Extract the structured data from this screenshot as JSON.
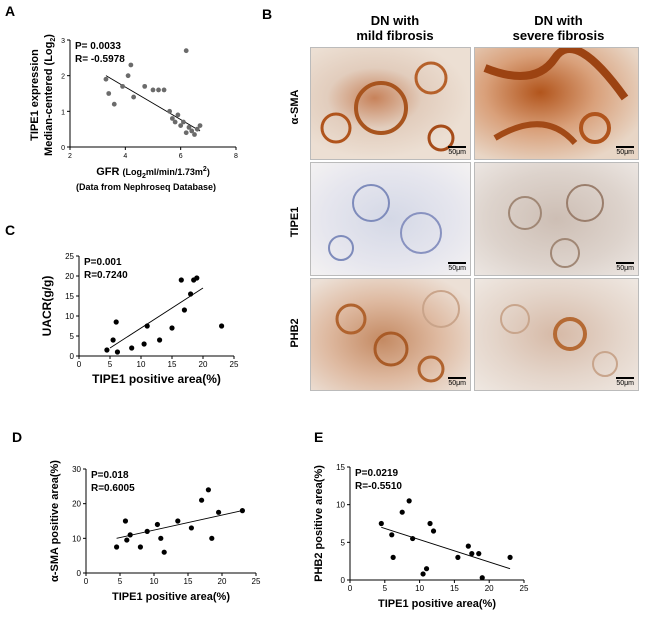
{
  "panels": {
    "A": "A",
    "B": "B",
    "C": "C",
    "D": "D",
    "E": "E"
  },
  "histology": {
    "col1_line1": "DN with",
    "col1_line2": "mild fibrosis",
    "col2_line1": "DN with",
    "col2_line2": "severe fibrosis",
    "rows": [
      "α-SMA",
      "TIPE1",
      "PHB2"
    ],
    "scale_bar": "50μm",
    "colors": {
      "brown": "#b0541c",
      "tissue": "#e9dcd0",
      "blue": "#4a5fa8"
    }
  },
  "chart_data": [
    {
      "type": "scatter",
      "panel": "A",
      "ylabel_line1": "TIPE1 expression",
      "ylabel_line2": "Median-centered (Log",
      "ylabel_sub": "2",
      "xlabel_main": "GFR",
      "xlabel_unit_a": "(Log",
      "xlabel_unit_sub": "2",
      "xlabel_unit_b": "ml/min/1.73m",
      "xlabel_unit_sup": "2",
      "xlabel_unit_end": ")",
      "note": "(Data from Nephroseq Database)",
      "stat_p": "P= 0.0033",
      "stat_r": "R= -0.5978",
      "xlim": [
        2,
        8
      ],
      "ylim": [
        0,
        3
      ],
      "xticks": [
        2,
        4,
        6,
        8
      ],
      "yticks": [
        0,
        1,
        2,
        3
      ],
      "fit": [
        [
          3.3,
          2.0
        ],
        [
          6.7,
          0.45
        ]
      ],
      "x": [
        3.3,
        3.4,
        3.6,
        3.9,
        4.1,
        4.2,
        4.3,
        4.7,
        5.0,
        5.2,
        5.4,
        5.6,
        5.7,
        5.8,
        5.9,
        6.0,
        6.1,
        6.2,
        6.2,
        6.3,
        6.4,
        6.5,
        6.6,
        6.7
      ],
      "y": [
        1.9,
        1.5,
        1.2,
        1.7,
        2.0,
        2.3,
        1.4,
        1.7,
        1.6,
        1.6,
        1.6,
        1.0,
        0.8,
        0.7,
        0.9,
        0.6,
        0.7,
        2.7,
        0.4,
        0.55,
        0.45,
        0.35,
        0.5,
        0.6
      ]
    },
    {
      "type": "scatter",
      "panel": "C",
      "ylabel": "UACR(g/g)",
      "xlabel": "TIPE1 positive area(%)",
      "stat_p": "P=0.001",
      "stat_r": "R=0.7240",
      "xlim": [
        0,
        25
      ],
      "ylim": [
        0,
        25
      ],
      "xticks": [
        0,
        5,
        10,
        15,
        20,
        25
      ],
      "yticks": [
        0,
        5,
        10,
        15,
        20,
        25
      ],
      "fit": [
        [
          5,
          2.0
        ],
        [
          20,
          17.0
        ]
      ],
      "x": [
        4.5,
        5.5,
        6.0,
        6.2,
        8.5,
        10.5,
        11.0,
        13.0,
        15.0,
        16.5,
        17.0,
        18.0,
        18.5,
        19.0,
        23.0
      ],
      "y": [
        1.5,
        4.0,
        8.5,
        1.0,
        2.0,
        3.0,
        7.5,
        4.0,
        7.0,
        19.0,
        11.5,
        15.5,
        19.0,
        19.5,
        7.5
      ]
    },
    {
      "type": "scatter",
      "panel": "D",
      "ylabel": "α-SMA positive area(%)",
      "xlabel": "TIPE1 positive area(%)",
      "stat_p": "P=0.018",
      "stat_r": "R=0.6005",
      "xlim": [
        0,
        25
      ],
      "ylim": [
        0,
        30
      ],
      "xticks": [
        0,
        5,
        10,
        15,
        20,
        25
      ],
      "yticks": [
        0,
        10,
        20,
        30
      ],
      "fit": [
        [
          4.5,
          10.0
        ],
        [
          23.0,
          18.0
        ]
      ],
      "x": [
        4.5,
        5.8,
        6.0,
        6.5,
        8.0,
        9.0,
        10.5,
        11.0,
        11.5,
        13.5,
        15.5,
        17.0,
        18.0,
        18.5,
        19.5,
        23.0
      ],
      "y": [
        7.5,
        15.0,
        9.5,
        11.0,
        7.5,
        12.0,
        14.0,
        10.0,
        6.0,
        15.0,
        13.0,
        21.0,
        24.0,
        10.0,
        17.5,
        18.0
      ]
    },
    {
      "type": "scatter",
      "panel": "E",
      "ylabel": "PHB2 positive area(%)",
      "xlabel": "TIPE1 positive area(%)",
      "stat_p": "P=0.0219",
      "stat_r": "R=-0.5510",
      "xlim": [
        0,
        25
      ],
      "ylim": [
        0,
        15
      ],
      "xticks": [
        0,
        5,
        10,
        15,
        20,
        25
      ],
      "yticks": [
        0,
        5,
        10,
        15
      ],
      "fit": [
        [
          4.5,
          7.0
        ],
        [
          23.0,
          1.5
        ]
      ],
      "x": [
        4.5,
        6.0,
        6.2,
        7.5,
        8.5,
        9.0,
        10.5,
        11.0,
        11.5,
        12.0,
        15.5,
        17.0,
        17.5,
        18.5,
        19.0,
        23.0
      ],
      "y": [
        7.5,
        6.0,
        3.0,
        9.0,
        10.5,
        5.5,
        0.8,
        1.5,
        7.5,
        6.5,
        3.0,
        4.5,
        3.5,
        3.5,
        0.3,
        3.0
      ]
    }
  ]
}
